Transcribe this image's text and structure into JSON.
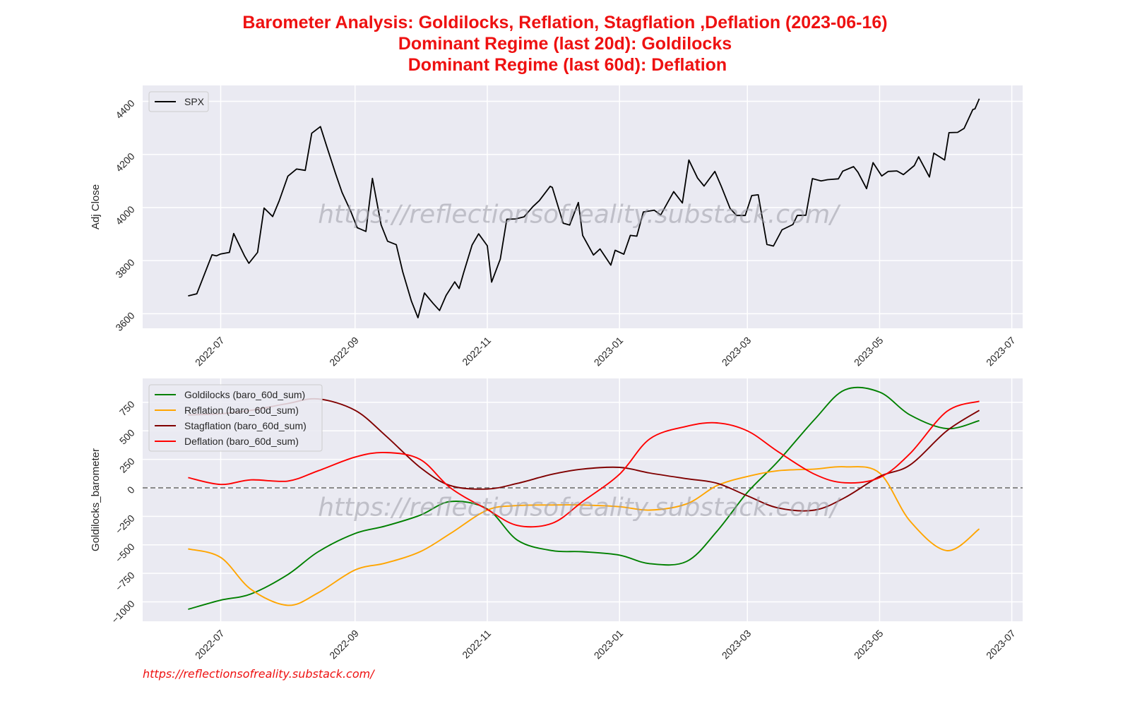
{
  "chart_data": {
    "title_lines": [
      "Barometer Analysis: Goldilocks, Reflation, Stagflation ,Deflation (2023-06-16)",
      "Dominant Regime (last 20d): Goldilocks",
      " Dominant Regime (last 60d): Deflation"
    ],
    "title_color": "#ee1111",
    "watermark": "https://reflectionsofreality.substack.com/",
    "footer": "https://reflectionsofreality.substack.com/",
    "panels": [
      {
        "type": "line",
        "ylabel": "Adj Close",
        "ylim": [
          3545,
          4460
        ],
        "yticks": [
          "3600",
          "3800",
          "4000",
          "4200",
          "4400"
        ],
        "xticks": [
          "2022-07",
          "2022-09",
          "2022-11",
          "2023-01",
          "2023-03",
          "2023-05",
          "2023-07"
        ],
        "xlim": [
          "2022-05-26",
          "2023-07-06"
        ],
        "legend": "upper left",
        "series": [
          {
            "name": "SPX",
            "color": "#000000",
            "x": [
              "2022-06-16",
              "2022-06-20",
              "2022-06-27",
              "2022-06-29",
              "2022-07-01",
              "2022-07-05",
              "2022-07-07",
              "2022-07-12",
              "2022-07-14",
              "2022-07-18",
              "2022-07-21",
              "2022-07-25",
              "2022-07-28",
              "2022-08-01",
              "2022-08-05",
              "2022-08-09",
              "2022-08-12",
              "2022-08-16",
              "2022-08-19",
              "2022-08-23",
              "2022-08-26",
              "2022-08-30",
              "2022-09-02",
              "2022-09-06",
              "2022-09-09",
              "2022-09-13",
              "2022-09-16",
              "2022-09-20",
              "2022-09-23",
              "2022-09-27",
              "2022-09-30",
              "2022-10-03",
              "2022-10-07",
              "2022-10-10",
              "2022-10-13",
              "2022-10-17",
              "2022-10-19",
              "2022-10-21",
              "2022-10-25",
              "2022-10-28",
              "2022-11-01",
              "2022-11-03",
              "2022-11-07",
              "2022-11-10",
              "2022-11-14",
              "2022-11-18",
              "2022-11-22",
              "2022-11-25",
              "2022-11-30",
              "2022-12-01",
              "2022-12-06",
              "2022-12-09",
              "2022-12-13",
              "2022-12-15",
              "2022-12-20",
              "2022-12-23",
              "2022-12-28",
              "2022-12-30",
              "2023-01-03",
              "2023-01-06",
              "2023-01-09",
              "2023-01-12",
              "2023-01-17",
              "2023-01-20",
              "2023-01-26",
              "2023-01-30",
              "2023-02-02",
              "2023-02-06",
              "2023-02-09",
              "2023-02-14",
              "2023-02-17",
              "2023-02-21",
              "2023-02-24",
              "2023-02-28",
              "2023-03-03",
              "2023-03-06",
              "2023-03-10",
              "2023-03-13",
              "2023-03-17",
              "2023-03-22",
              "2023-03-24",
              "2023-03-28",
              "2023-03-31",
              "2023-04-04",
              "2023-04-07",
              "2023-04-12",
              "2023-04-14",
              "2023-04-19",
              "2023-04-21",
              "2023-04-25",
              "2023-04-28",
              "2023-05-02",
              "2023-05-05",
              "2023-05-09",
              "2023-05-12",
              "2023-05-17",
              "2023-05-19",
              "2023-05-24",
              "2023-05-26",
              "2023-05-31",
              "2023-06-02",
              "2023-06-06",
              "2023-06-09",
              "2023-06-13",
              "2023-06-14",
              "2023-06-16"
            ],
            "values": [
              3667,
              3675,
              3822,
              3818,
              3825,
              3831,
              3902,
              3818,
              3790,
              3831,
              3998,
              3966,
              4025,
              4118,
              4145,
              4140,
              4280,
              4305,
              4228,
              4128,
              4057,
              3986,
              3924,
              3910,
              4110,
              3935,
              3873,
              3860,
              3757,
              3647,
              3585,
              3678,
              3639,
              3612,
              3669,
              3720,
              3695,
              3752,
              3859,
              3901,
              3856,
              3719,
              3806,
              3956,
              3957,
              3965,
              4003,
              4026,
              4080,
              4076,
              3941,
              3934,
              4019,
              3895,
              3821,
              3844,
              3783,
              3839,
              3824,
              3895,
              3892,
              3983,
              3990,
              3972,
              4060,
              4017,
              4179,
              4111,
              4081,
              4136,
              4079,
              3997,
              3970,
              3970,
              4045,
              4048,
              3861,
              3855,
              3916,
              3936,
              3970,
              3971,
              4109,
              4100,
              4105,
              4108,
              4137,
              4154,
              4133,
              4071,
              4169,
              4119,
              4136,
              4138,
              4124,
              4158,
              4191,
              4115,
              4205,
              4179,
              4282,
              4283,
              4298,
              4369,
              4372,
              4410
            ]
          }
        ]
      },
      {
        "type": "line",
        "ylabel": "Goldilocks_barometer",
        "ylim": [
          -1170,
          960
        ],
        "yticks": [
          "−1000",
          "−750",
          "−500",
          "−250",
          "0",
          "250",
          "500",
          "750"
        ],
        "ytick_values": [
          -1000,
          -750,
          -500,
          -250,
          0,
          250,
          500,
          750
        ],
        "xticks": [
          "2022-07",
          "2022-09",
          "2022-11",
          "2023-01",
          "2023-03",
          "2023-05",
          "2023-07"
        ],
        "xlim": [
          "2022-05-26",
          "2023-07-06"
        ],
        "hline": 0,
        "legend": "upper left",
        "series": [
          {
            "name": "Goldilocks (baro_60d_sum)",
            "color": "#008000",
            "x": [
              "2022-06-16",
              "2022-07-01",
              "2022-07-15",
              "2022-08-01",
              "2022-08-15",
              "2022-09-01",
              "2022-09-15",
              "2022-10-01",
              "2022-10-15",
              "2022-11-01",
              "2022-11-15",
              "2022-12-01",
              "2022-12-15",
              "2023-01-01",
              "2023-01-15",
              "2023-02-01",
              "2023-02-15",
              "2023-03-01",
              "2023-03-15",
              "2023-04-01",
              "2023-04-15",
              "2023-05-01",
              "2023-05-15",
              "2023-06-01",
              "2023-06-16"
            ],
            "values": [
              -1065,
              -985,
              -930,
              -760,
              -560,
              -400,
              -335,
              -240,
              -120,
              -185,
              -460,
              -550,
              -560,
              -590,
              -665,
              -645,
              -380,
              -40,
              230,
              600,
              860,
              840,
              640,
              520,
              590
            ]
          },
          {
            "name": "Reflation (baro_60d_sum)",
            "color": "#ffa500",
            "x": [
              "2022-06-16",
              "2022-07-01",
              "2022-07-15",
              "2022-08-01",
              "2022-08-15",
              "2022-09-01",
              "2022-09-15",
              "2022-10-01",
              "2022-10-15",
              "2022-11-01",
              "2022-11-15",
              "2022-12-01",
              "2022-12-15",
              "2023-01-01",
              "2023-01-15",
              "2023-02-01",
              "2023-02-15",
              "2023-03-01",
              "2023-03-15",
              "2023-04-01",
              "2023-04-15",
              "2023-05-01",
              "2023-05-15",
              "2023-06-01",
              "2023-06-16"
            ],
            "values": [
              -535,
              -610,
              -890,
              -1030,
              -920,
              -720,
              -660,
              -560,
              -400,
              -195,
              -155,
              -150,
              -150,
              -165,
              -195,
              -140,
              20,
              100,
              150,
              165,
              185,
              130,
              -290,
              -550,
              -360
            ]
          },
          {
            "name": "Stagflation (baro_60d_sum)",
            "color": "#800000",
            "x": [
              "2022-06-16",
              "2022-07-01",
              "2022-07-15",
              "2022-08-01",
              "2022-08-15",
              "2022-09-01",
              "2022-09-15",
              "2022-10-01",
              "2022-10-15",
              "2022-11-01",
              "2022-11-15",
              "2022-12-01",
              "2022-12-15",
              "2023-01-01",
              "2023-01-15",
              "2023-02-01",
              "2023-02-15",
              "2023-03-01",
              "2023-03-15",
              "2023-04-01",
              "2023-04-15",
              "2023-05-01",
              "2023-05-15",
              "2023-06-01",
              "2023-06-16"
            ],
            "values": [
              640,
              650,
              680,
              740,
              780,
              680,
              460,
              180,
              20,
              -10,
              40,
              120,
              165,
              180,
              130,
              80,
              40,
              -70,
              -175,
              -195,
              -85,
              100,
              200,
              500,
              680
            ]
          },
          {
            "name": "Deflation (baro_60d_sum)",
            "color": "#ff0000",
            "x": [
              "2022-06-16",
              "2022-07-01",
              "2022-07-15",
              "2022-08-01",
              "2022-08-15",
              "2022-09-01",
              "2022-09-15",
              "2022-10-01",
              "2022-10-15",
              "2022-11-01",
              "2022-11-15",
              "2022-12-01",
              "2022-12-15",
              "2023-01-01",
              "2023-01-15",
              "2023-02-01",
              "2023-02-15",
              "2023-03-01",
              "2023-03-15",
              "2023-04-01",
              "2023-04-15",
              "2023-05-01",
              "2023-05-15",
              "2023-06-01",
              "2023-06-16"
            ],
            "values": [
              90,
              30,
              70,
              60,
              150,
              270,
              310,
              250,
              0,
              -190,
              -330,
              -310,
              -120,
              120,
              430,
              540,
              570,
              500,
              320,
              120,
              45,
              90,
              300,
              670,
              760
            ]
          }
        ]
      }
    ]
  }
}
